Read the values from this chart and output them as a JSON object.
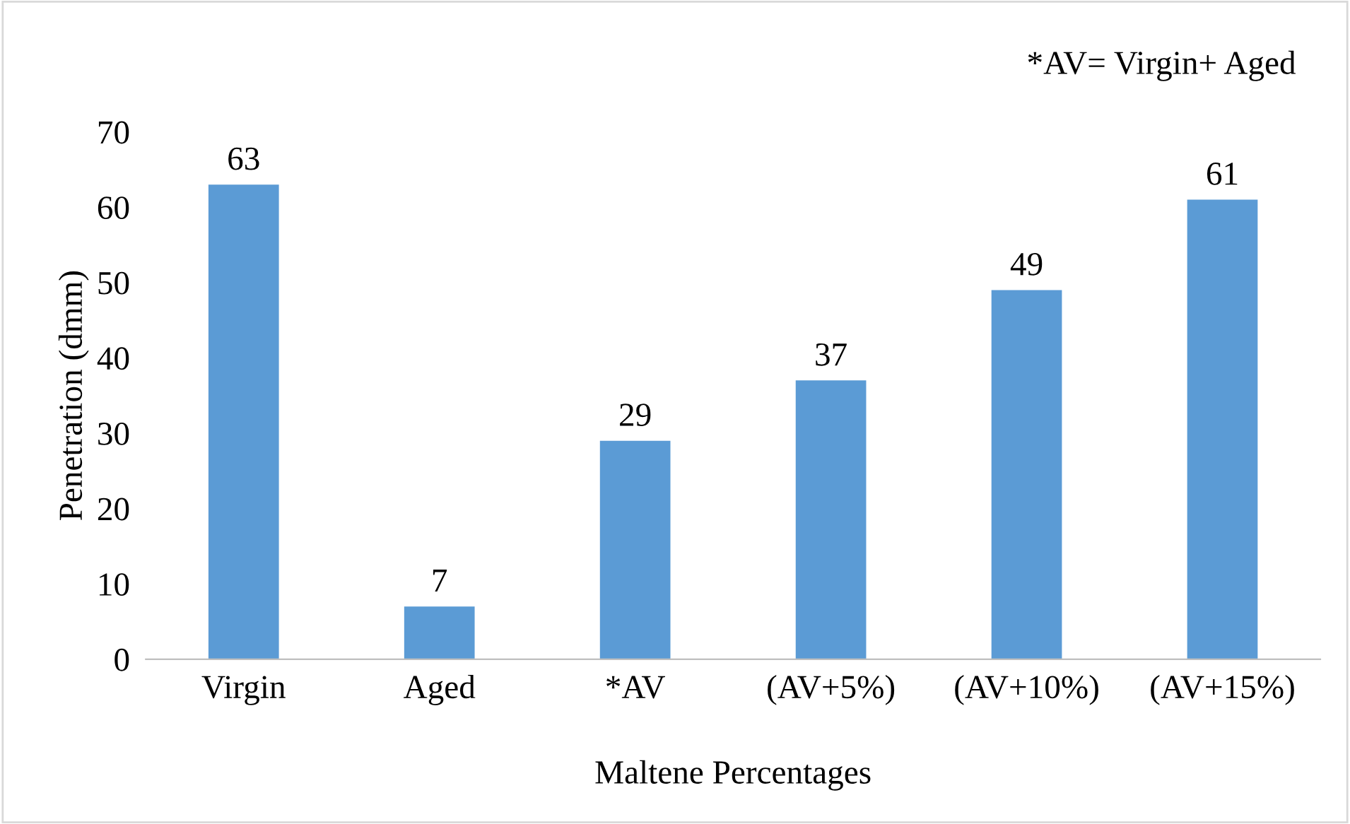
{
  "chart_data": {
    "type": "bar",
    "xlabel": "Maltene Percentages",
    "ylabel": "Penetration (dmm)",
    "annotations": [
      "*AV= Virgin+ Aged"
    ],
    "categories": [
      "Virgin",
      "Aged",
      "*AV",
      "(AV+5%)",
      "(AV+10%)",
      "(AV+15%)"
    ],
    "values": [
      63,
      7,
      29,
      37,
      49,
      61
    ],
    "color": "#5b9bd5",
    "ylim": [
      0,
      70
    ],
    "yticks": [
      0,
      10,
      20,
      30,
      40,
      50,
      60,
      70
    ],
    "data_labels": true,
    "grid": false,
    "legend": false
  }
}
